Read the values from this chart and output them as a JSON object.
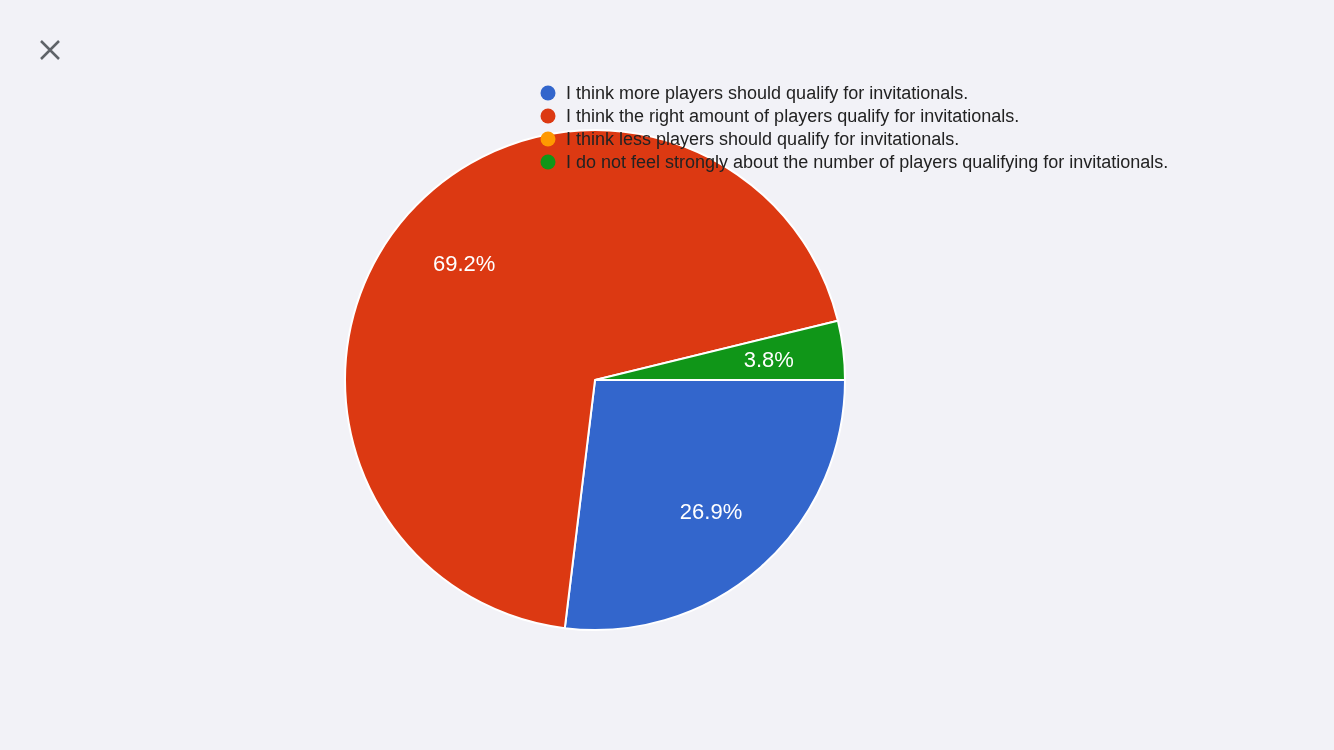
{
  "chart_data": {
    "type": "pie",
    "categories": [
      "I think more players should qualify for invitationals.",
      "I think the right amount of players qualify for invitationals.",
      "I think less players should qualify for invitationals.",
      "I do not feel strongly about the number of players qualifying for invitationals."
    ],
    "values": [
      26.9,
      69.2,
      0,
      3.8
    ],
    "colors": [
      "#3366cc",
      "#dc3912",
      "#ff9900",
      "#109618"
    ],
    "value_labels": [
      "26.9%",
      "69.2%",
      null,
      "3.8%"
    ],
    "legend": "top right"
  }
}
